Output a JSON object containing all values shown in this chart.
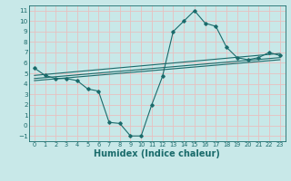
{
  "xlabel": "Humidex (Indice chaleur)",
  "xlim": [
    -0.5,
    23.5
  ],
  "ylim": [
    -1.5,
    11.5
  ],
  "xticks": [
    0,
    1,
    2,
    3,
    4,
    5,
    6,
    7,
    8,
    9,
    10,
    11,
    12,
    13,
    14,
    15,
    16,
    17,
    18,
    19,
    20,
    21,
    22,
    23
  ],
  "yticks": [
    -1,
    0,
    1,
    2,
    3,
    4,
    5,
    6,
    7,
    8,
    9,
    10,
    11
  ],
  "bg_color": "#c8e8e8",
  "grid_color": "#e8c0c0",
  "line_color": "#1a6b6b",
  "curve1_x": [
    0,
    1,
    2,
    3,
    4,
    5,
    6,
    7,
    8,
    9,
    10,
    11,
    12,
    13,
    14,
    15,
    16,
    17,
    18,
    19,
    20,
    21,
    22,
    23
  ],
  "curve1_y": [
    5.5,
    4.8,
    4.5,
    4.5,
    4.3,
    3.5,
    3.3,
    0.3,
    0.2,
    -1.0,
    -1.0,
    2.0,
    4.7,
    9.0,
    10.0,
    11.0,
    9.8,
    9.5,
    7.5,
    6.5,
    6.3,
    6.5,
    7.0,
    6.7
  ],
  "line1_x": [
    0,
    23
  ],
  "line1_y": [
    4.5,
    6.5
  ],
  "line2_x": [
    0,
    23
  ],
  "line2_y": [
    4.8,
    6.9
  ],
  "line3_x": [
    0,
    23
  ],
  "line3_y": [
    4.3,
    6.3
  ],
  "font_color": "#1a6b6b",
  "tick_fontsize": 5.0,
  "xlabel_fontsize": 7.0,
  "figsize": [
    3.2,
    2.0
  ],
  "dpi": 100
}
